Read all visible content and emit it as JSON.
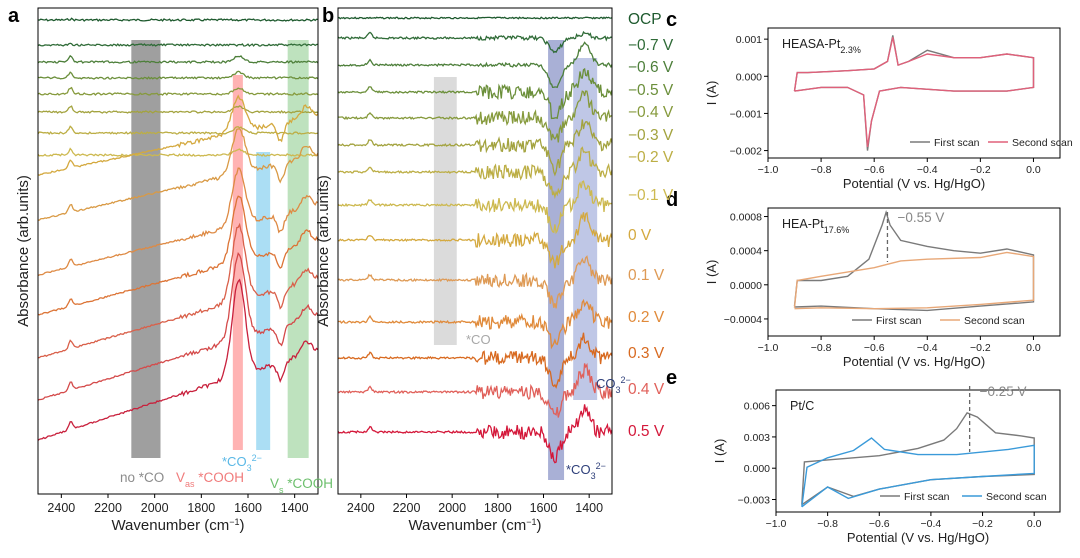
{
  "panels": {
    "a": {
      "letter": "a"
    },
    "b": {
      "letter": "b"
    },
    "c": {
      "letter": "c"
    },
    "d": {
      "letter": "d"
    },
    "e": {
      "letter": "e"
    }
  },
  "chart_data": [
    {
      "id": "a",
      "type": "line",
      "xlabel_main": "Wavenumber (cm",
      "xlabel_sup": "−1",
      "xlabel_end": ")",
      "ylabel": "Absorbance (arb.units)",
      "xlim": [
        2500,
        1300
      ],
      "x_ticks": [
        "2400",
        "2200",
        "2000",
        "1800",
        "1600",
        "1400"
      ],
      "x_tick_values": [
        2400,
        2200,
        2000,
        1800,
        1600,
        1400
      ],
      "bands": [
        {
          "from": 2100,
          "to": 1975,
          "color": "#7f7f7f"
        },
        {
          "from": 1665,
          "to": 1622,
          "color": "#ff9a9a"
        },
        {
          "from": 1565,
          "to": 1505,
          "color": "#8fd3f0"
        },
        {
          "from": 1430,
          "to": 1340,
          "color": "#a8d8a8"
        }
      ],
      "annotations": [
        {
          "text": "no *CO",
          "color": "#8c8c8c"
        },
        {
          "text": "V",
          "sub": "as",
          "text2": " *COOH",
          "color": "#f07b7b"
        },
        {
          "text": "*CO",
          "sup": "3",
          "sup2": "2−",
          "color": "#5ab8e6"
        },
        {
          "text": "V",
          "sub": "s",
          "text2": " *COOH",
          "color": "#6cbf6c"
        }
      ],
      "series": [
        {
          "color": "#1e5a2e"
        },
        {
          "color": "#2f6b37"
        },
        {
          "color": "#4d7f3a"
        },
        {
          "color": "#6b8f3a"
        },
        {
          "color": "#869a3c"
        },
        {
          "color": "#a3a33f"
        },
        {
          "color": "#bcae45"
        },
        {
          "color": "#cdb950"
        },
        {
          "color": "#d4a93f"
        },
        {
          "color": "#d99a45"
        },
        {
          "color": "#de8a44"
        },
        {
          "color": "#dc7436"
        },
        {
          "color": "#d9604a"
        },
        {
          "color": "#d44a4a"
        },
        {
          "color": "#c8203c"
        }
      ]
    },
    {
      "id": "b",
      "type": "line",
      "xlabel_main": "Wavenumber (cm",
      "xlabel_sup": "−1",
      "xlabel_end": ")",
      "ylabel": "Absorbance (arb.units)",
      "xlim": [
        2500,
        1300
      ],
      "x_ticks": [
        "2400",
        "2200",
        "2000",
        "1800",
        "1600",
        "1400"
      ],
      "x_tick_values": [
        2400,
        2200,
        2000,
        1800,
        1600,
        1400
      ],
      "bands": [
        {
          "from": 2080,
          "to": 1980,
          "color": "#cfcfcf"
        },
        {
          "from": 1580,
          "to": 1510,
          "color": "#8c95c8"
        },
        {
          "from": 1470,
          "to": 1365,
          "color": "#a9b4dd"
        }
      ],
      "annotations": [
        {
          "text": "*CO",
          "color": "#a8a8a8"
        },
        {
          "text": "CO",
          "sup": "3",
          "sup2": "2−",
          "color": "#2e3f7a"
        },
        {
          "text": "*CO",
          "sup": "3",
          "sup2": "2−",
          "color": "#2e3f7a"
        }
      ],
      "series": [
        {
          "name": "OCP",
          "color": "#1e5a2e"
        },
        {
          "name": "−0.7 V",
          "color": "#2f6b37"
        },
        {
          "name": "−0.6 V",
          "color": "#4d7f3a"
        },
        {
          "name": "−0.5 V",
          "color": "#6b8f3a"
        },
        {
          "name": "−0.4 V",
          "color": "#869a3c"
        },
        {
          "name": "−0.3 V",
          "color": "#a3a33f"
        },
        {
          "name": "−0.2 V",
          "color": "#bcae45"
        },
        {
          "name": "−0.1 V",
          "color": "#cdb950"
        },
        {
          "name": "0 V",
          "color": "#d4a93f"
        },
        {
          "name": "0.1 V",
          "color": "#de9a55"
        },
        {
          "name": "0.2 V",
          "color": "#e08a3a"
        },
        {
          "name": "0.3 V",
          "color": "#d86a20"
        },
        {
          "name": "0.4 V",
          "color": "#e0605a"
        },
        {
          "name": "0.5 V",
          "color": "#d4183a"
        }
      ]
    },
    {
      "id": "c",
      "type": "line",
      "title_main": "HEASA-Pt",
      "title_sub": "2.3%",
      "xlabel": "Potential (V vs. Hg/HgO)",
      "ylabel": "I (A)",
      "xlim": [
        -1.0,
        0.1
      ],
      "ylim": [
        -0.0022,
        0.0013
      ],
      "x_ticks": [
        "−1.0",
        "−0.8",
        "−0.6",
        "−0.4",
        "−0.2",
        "0.0"
      ],
      "x_tick_values": [
        -1.0,
        -0.8,
        -0.6,
        -0.4,
        -0.2,
        0.0
      ],
      "y_ticks": [
        "0.001",
        "0.000",
        "−0.001",
        "−0.002"
      ],
      "y_tick_values": [
        0.001,
        0.0,
        -0.001,
        -0.002
      ],
      "series": [
        {
          "name": "First scan",
          "color": "#7a7a7a"
        },
        {
          "name": "Second scan",
          "color": "#e0607a"
        }
      ]
    },
    {
      "id": "d",
      "type": "line",
      "title_main": "HEA-Pt",
      "title_sub": "17.6%",
      "marker_label": "−0.55 V",
      "marker_x": -0.55,
      "xlabel": "Potential (V vs. Hg/HgO)",
      "ylabel": "I (A)",
      "xlim": [
        -1.0,
        0.1
      ],
      "ylim": [
        -0.0006,
        0.0009
      ],
      "x_ticks": [
        "−1.0",
        "−0.8",
        "−0.6",
        "−0.4",
        "−0.2",
        "0.0"
      ],
      "x_tick_values": [
        -1.0,
        -0.8,
        -0.6,
        -0.4,
        -0.2,
        0.0
      ],
      "y_ticks": [
        "0.0008",
        "0.0004",
        "0.0000",
        "−0.0004"
      ],
      "y_tick_values": [
        0.0008,
        0.0004,
        0.0,
        -0.0004
      ],
      "series": [
        {
          "name": "First scan",
          "color": "#7a7a7a"
        },
        {
          "name": "Second scan",
          "color": "#e8a878"
        }
      ]
    },
    {
      "id": "e",
      "type": "line",
      "title_main": "Pt/C",
      "marker_label": "−0.25 V",
      "marker_x": -0.25,
      "xlabel": "Potential (V vs. Hg/HgO)",
      "ylabel": "I (A)",
      "xlim": [
        -1.0,
        0.1
      ],
      "ylim": [
        -0.0042,
        0.0075
      ],
      "x_ticks": [
        "−1.0",
        "−0.8",
        "−0.6",
        "−0.4",
        "−0.2",
        "0.0"
      ],
      "x_tick_values": [
        -1.0,
        -0.8,
        -0.6,
        -0.4,
        -0.2,
        0.0
      ],
      "y_ticks": [
        "0.006",
        "0.003",
        "0.000",
        "−0.003"
      ],
      "y_tick_values": [
        0.006,
        0.003,
        0.0,
        -0.003
      ],
      "series": [
        {
          "name": "First scan",
          "color": "#7a7a7a"
        },
        {
          "name": "Second scan",
          "color": "#3a9ad9"
        }
      ]
    }
  ]
}
